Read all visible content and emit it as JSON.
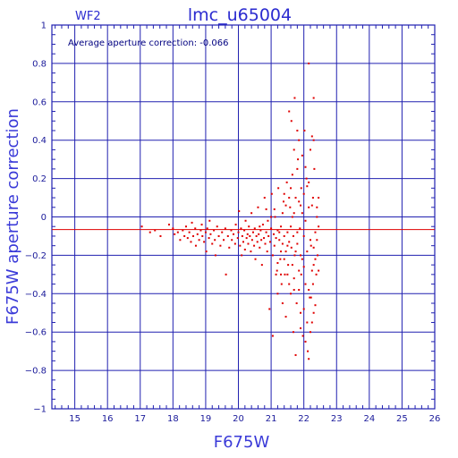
{
  "chart_data": {
    "type": "scatter",
    "title": "lmc_u65004",
    "subtitle": "WF2",
    "annotation": "Average aperture correction: -0.066",
    "xlabel": "F675W",
    "ylabel": "F675W aperture correction",
    "xlim": [
      14.3,
      26
    ],
    "ylim": [
      -1,
      1
    ],
    "xticks": [
      15,
      16,
      17,
      18,
      19,
      20,
      21,
      22,
      23,
      24,
      25,
      26
    ],
    "yticks": [
      -1,
      -0.8,
      -0.6,
      -0.4,
      -0.2,
      0,
      0.2,
      0.4,
      0.6,
      0.8,
      1
    ],
    "ytick_labels": [
      "−1",
      "−0.8",
      "−0.6",
      "−0.4",
      "−0.2",
      "0",
      "0.2",
      "0.4",
      "0.6",
      "0.8",
      "1"
    ],
    "grid": true,
    "mean_line": -0.066,
    "colors": {
      "grid": "#2020b0",
      "points": "#e00000",
      "mean_line": "#e00000",
      "frame": "#2020b0"
    },
    "series": [
      {
        "points": [
          [
            17.05,
            -0.05
          ],
          [
            17.3,
            -0.08
          ],
          [
            17.45,
            -0.07
          ],
          [
            17.62,
            -0.1
          ],
          [
            17.88,
            -0.04
          ],
          [
            18.0,
            -0.06
          ],
          [
            18.05,
            -0.09
          ],
          [
            18.15,
            -0.08
          ],
          [
            18.22,
            -0.12
          ],
          [
            18.3,
            -0.07
          ],
          [
            18.35,
            -0.1
          ],
          [
            18.4,
            -0.05
          ],
          [
            18.45,
            -0.11
          ],
          [
            18.5,
            -0.08
          ],
          [
            18.55,
            -0.13
          ],
          [
            18.58,
            -0.03
          ],
          [
            18.62,
            -0.1
          ],
          [
            18.68,
            -0.06
          ],
          [
            18.7,
            -0.15
          ],
          [
            18.75,
            -0.09
          ],
          [
            18.8,
            -0.12
          ],
          [
            18.85,
            -0.07
          ],
          [
            18.88,
            -0.04
          ],
          [
            18.9,
            -0.1
          ],
          [
            18.95,
            -0.13
          ],
          [
            19.0,
            -0.08
          ],
          [
            19.02,
            -0.18
          ],
          [
            19.05,
            -0.06
          ],
          [
            19.1,
            -0.11
          ],
          [
            19.12,
            -0.02
          ],
          [
            19.15,
            -0.09
          ],
          [
            19.2,
            -0.14
          ],
          [
            19.25,
            -0.07
          ],
          [
            19.28,
            -0.12
          ],
          [
            19.3,
            -0.2
          ],
          [
            19.35,
            -0.05
          ],
          [
            19.4,
            -0.1
          ],
          [
            19.45,
            -0.15
          ],
          [
            19.5,
            -0.08
          ],
          [
            19.55,
            -0.12
          ],
          [
            19.6,
            -0.06
          ],
          [
            19.62,
            -0.3
          ],
          [
            19.68,
            -0.1
          ],
          [
            19.72,
            -0.16
          ],
          [
            19.78,
            -0.07
          ],
          [
            19.8,
            -0.12
          ],
          [
            19.85,
            -0.09
          ],
          [
            19.9,
            -0.14
          ],
          [
            19.92,
            -0.04
          ],
          [
            19.98,
            -0.11
          ],
          [
            20.0,
            -0.08
          ],
          [
            20.02,
            0.03
          ],
          [
            20.05,
            -0.15
          ],
          [
            20.08,
            -0.06
          ],
          [
            20.1,
            -0.2
          ],
          [
            20.12,
            -0.1
          ],
          [
            20.15,
            -0.13
          ],
          [
            20.18,
            -0.07
          ],
          [
            20.2,
            -0.17
          ],
          [
            20.22,
            -0.02
          ],
          [
            20.25,
            -0.11
          ],
          [
            20.28,
            -0.09
          ],
          [
            20.3,
            -0.14
          ],
          [
            20.32,
            -0.05
          ],
          [
            20.35,
            -0.1
          ],
          [
            20.38,
            -0.18
          ],
          [
            20.4,
            0.02
          ],
          [
            20.42,
            -0.12
          ],
          [
            20.45,
            -0.08
          ],
          [
            20.48,
            -0.15
          ],
          [
            20.5,
            -0.06
          ],
          [
            20.52,
            -0.22
          ],
          [
            20.55,
            -0.1
          ],
          [
            20.58,
            -0.13
          ],
          [
            20.6,
            0.05
          ],
          [
            20.62,
            -0.09
          ],
          [
            20.65,
            -0.16
          ],
          [
            20.68,
            -0.07
          ],
          [
            20.7,
            -0.12
          ],
          [
            20.72,
            -0.25
          ],
          [
            20.75,
            -0.04
          ],
          [
            20.78,
            -0.11
          ],
          [
            20.8,
            0.1
          ],
          [
            20.82,
            -0.14
          ],
          [
            20.85,
            -0.08
          ],
          [
            20.88,
            -0.18
          ],
          [
            20.9,
            -0.02
          ],
          [
            20.92,
            -0.1
          ],
          [
            20.95,
            -0.48
          ],
          [
            20.97,
            -0.13
          ],
          [
            21.0,
            -0.06
          ],
          [
            21.02,
            0.12
          ],
          [
            21.05,
            -0.2
          ],
          [
            21.08,
            -0.09
          ],
          [
            21.1,
            -0.15
          ],
          [
            21.12,
            0.0
          ],
          [
            21.15,
            -0.11
          ],
          [
            21.18,
            -0.28
          ],
          [
            21.2,
            -0.07
          ],
          [
            21.22,
            0.15
          ],
          [
            21.25,
            -0.12
          ],
          [
            21.28,
            -0.22
          ],
          [
            21.3,
            -0.05
          ],
          [
            21.32,
            -0.35
          ],
          [
            21.35,
            -0.14
          ],
          [
            21.38,
            0.08
          ],
          [
            21.4,
            -0.1
          ],
          [
            21.42,
            -0.3
          ],
          [
            21.45,
            -0.18
          ],
          [
            21.48,
            0.18
          ],
          [
            21.5,
            -0.08
          ],
          [
            21.52,
            -0.25
          ],
          [
            21.55,
            -0.13
          ],
          [
            21.58,
            0.05
          ],
          [
            21.6,
            -0.4
          ],
          [
            21.62,
            -0.16
          ],
          [
            21.65,
            0.22
          ],
          [
            21.68,
            -0.1
          ],
          [
            21.7,
            -0.32
          ],
          [
            21.72,
            -0.2
          ],
          [
            21.75,
            0.1
          ],
          [
            21.78,
            -0.45
          ],
          [
            21.8,
            -0.14
          ],
          [
            21.82,
            0.3
          ],
          [
            21.85,
            -0.28
          ],
          [
            21.88,
            -0.06
          ],
          [
            21.9,
            -0.5
          ],
          [
            21.92,
            0.15
          ],
          [
            21.95,
            -0.22
          ],
          [
            21.97,
            -0.62
          ],
          [
            22.0,
            -0.1
          ],
          [
            22.02,
            0.45
          ],
          [
            22.05,
            -0.35
          ],
          [
            22.08,
            0.2
          ],
          [
            22.1,
            -0.18
          ],
          [
            22.12,
            -0.7
          ],
          [
            22.15,
            0.05
          ],
          [
            22.18,
            -0.42
          ],
          [
            22.2,
            0.35
          ],
          [
            22.22,
            -0.15
          ],
          [
            22.25,
            -0.55
          ],
          [
            22.28,
            0.1
          ],
          [
            22.3,
            -0.25
          ],
          [
            22.32,
            0.25
          ],
          [
            22.35,
            -0.08
          ],
          [
            22.38,
            -0.3
          ],
          [
            22.4,
            0.0
          ],
          [
            22.42,
            -0.2
          ],
          [
            22.45,
            -0.05
          ],
          [
            21.55,
            0.55
          ],
          [
            21.62,
            0.5
          ],
          [
            21.72,
            0.62
          ],
          [
            22.15,
            0.8
          ],
          [
            22.3,
            0.62
          ],
          [
            21.85,
            0.4
          ],
          [
            21.95,
            0.32
          ],
          [
            22.05,
            -0.02
          ],
          [
            21.45,
            -0.52
          ],
          [
            21.68,
            -0.6
          ],
          [
            21.75,
            -0.72
          ],
          [
            22.15,
            -0.74
          ],
          [
            21.05,
            -0.62
          ],
          [
            21.2,
            -0.4
          ],
          [
            21.35,
            -0.45
          ],
          [
            21.55,
            -0.35
          ],
          [
            21.65,
            -0.25
          ],
          [
            21.85,
            -0.38
          ],
          [
            21.92,
            -0.3
          ],
          [
            22.0,
            -0.48
          ],
          [
            22.22,
            -0.42
          ],
          [
            22.28,
            -0.35
          ],
          [
            22.35,
            -0.46
          ],
          [
            21.3,
            -0.18
          ],
          [
            21.4,
            -0.22
          ],
          [
            21.5,
            -0.15
          ],
          [
            21.6,
            -0.05
          ],
          [
            21.7,
            0.02
          ],
          [
            21.8,
            -0.08
          ],
          [
            21.9,
            0.06
          ],
          [
            22.0,
            0.12
          ],
          [
            22.1,
            0.16
          ],
          [
            22.2,
            -0.12
          ],
          [
            22.3,
            -0.16
          ],
          [
            22.4,
            0.05
          ],
          [
            21.15,
            -0.3
          ],
          [
            21.25,
            -0.08
          ],
          [
            21.35,
            0.02
          ],
          [
            21.45,
            0.06
          ],
          [
            21.55,
            0.1
          ],
          [
            21.65,
            0.0
          ],
          [
            21.75,
            -0.18
          ],
          [
            21.85,
            0.08
          ],
          [
            21.95,
            0.02
          ],
          [
            22.05,
            0.26
          ],
          [
            22.15,
            0.18
          ],
          [
            22.25,
            0.06
          ],
          [
            20.65,
            -0.05
          ],
          [
            20.85,
            0.04
          ],
          [
            21.0,
            0.0
          ],
          [
            21.1,
            0.04
          ],
          [
            21.2,
            -0.24
          ],
          [
            21.3,
            -0.3
          ],
          [
            21.4,
            0.12
          ],
          [
            21.5,
            -0.3
          ],
          [
            21.6,
            0.15
          ],
          [
            21.7,
            -0.38
          ],
          [
            21.8,
            0.25
          ],
          [
            21.9,
            -0.2
          ],
          [
            22.0,
            -0.26
          ],
          [
            22.1,
            -0.55
          ],
          [
            22.2,
            -0.6
          ],
          [
            22.3,
            -0.5
          ],
          [
            22.4,
            -0.12
          ],
          [
            22.45,
            0.1
          ],
          [
            21.7,
            0.35
          ],
          [
            21.8,
            0.45
          ],
          [
            21.9,
            -0.58
          ],
          [
            22.05,
            -0.65
          ],
          [
            22.15,
            -0.38
          ],
          [
            22.25,
            -0.28
          ],
          [
            22.35,
            -0.22
          ],
          [
            22.45,
            -0.28
          ],
          [
            22.3,
            0.4
          ],
          [
            22.25,
            0.42
          ]
        ]
      }
    ]
  }
}
